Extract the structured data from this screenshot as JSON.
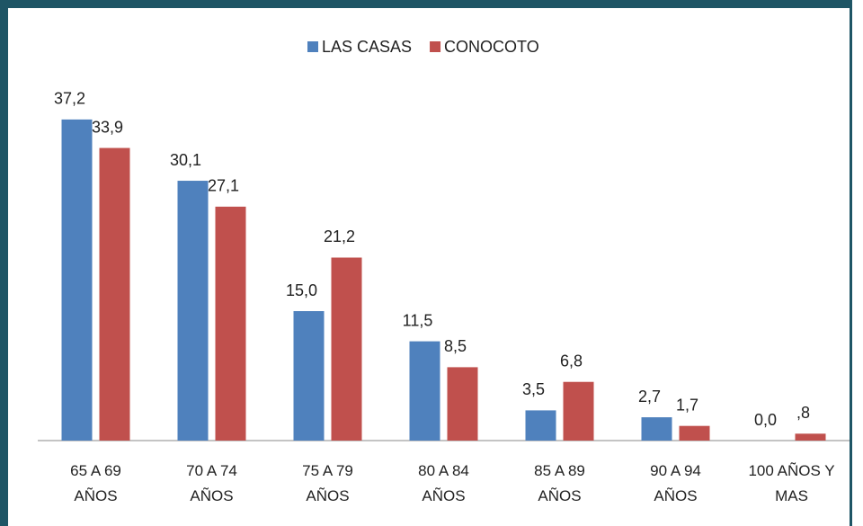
{
  "chart_data": {
    "type": "bar",
    "categories": [
      "65 A 69 AÑOS",
      "70 A 74 AÑOS",
      "75 A 79 AÑOS",
      "80 A 84 AÑOS",
      "85 A 89 AÑOS",
      "90 A 94 AÑOS",
      "100 AÑOS Y MAS"
    ],
    "series": [
      {
        "name": "LAS CASAS",
        "color": "#4f81bd",
        "values": [
          37.2,
          30.1,
          15.0,
          11.5,
          3.5,
          2.7,
          0.0
        ],
        "value_labels": [
          "37,2",
          "30,1",
          "15,0",
          "11,5",
          "3,5",
          "2,7",
          "0,0"
        ]
      },
      {
        "name": "CONOCOTO",
        "color": "#c0504d",
        "values": [
          33.9,
          27.1,
          21.2,
          8.5,
          6.8,
          1.7,
          0.8
        ],
        "value_labels": [
          "33,9",
          "27,1",
          "21,2",
          "8,5",
          "6,8",
          "1,7",
          ",8"
        ]
      }
    ],
    "ylim": [
      0,
      40
    ],
    "legend": "top"
  }
}
